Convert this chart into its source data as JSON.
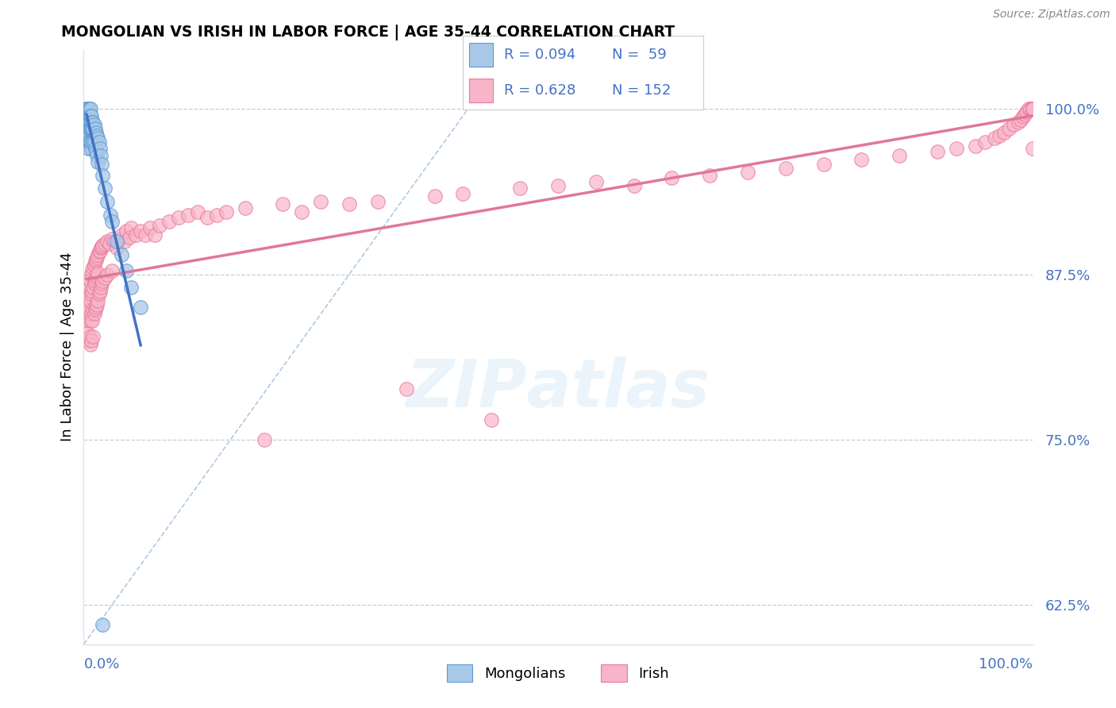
{
  "title": "MONGOLIAN VS IRISH IN LABOR FORCE | AGE 35-44 CORRELATION CHART",
  "source": "Source: ZipAtlas.com",
  "ylabel": "In Labor Force | Age 35-44",
  "ytick_labels": [
    "62.5%",
    "75.0%",
    "87.5%",
    "100.0%"
  ],
  "ytick_values": [
    0.625,
    0.75,
    0.875,
    1.0
  ],
  "xlim": [
    0.0,
    1.0
  ],
  "ylim": [
    0.595,
    1.045
  ],
  "legend_blue_r": "R = 0.094",
  "legend_blue_n": "N =  59",
  "legend_pink_r": "R = 0.628",
  "legend_pink_n": "N = 152",
  "mongolian_color": "#a8c8e8",
  "irish_color": "#f8b4c8",
  "mongolian_edge": "#5b9bd5",
  "irish_edge": "#e87898",
  "trend_blue": "#4472c4",
  "trend_pink": "#e07898",
  "diag_color": "#9bbcde",
  "label_color": "#4472c4",
  "mongolian_x": [
    0.003,
    0.003,
    0.003,
    0.004,
    0.004,
    0.004,
    0.004,
    0.005,
    0.005,
    0.005,
    0.005,
    0.005,
    0.005,
    0.005,
    0.005,
    0.006,
    0.006,
    0.006,
    0.006,
    0.006,
    0.007,
    0.007,
    0.007,
    0.007,
    0.008,
    0.008,
    0.008,
    0.008,
    0.009,
    0.009,
    0.009,
    0.01,
    0.01,
    0.01,
    0.011,
    0.011,
    0.012,
    0.012,
    0.013,
    0.013,
    0.014,
    0.014,
    0.015,
    0.015,
    0.016,
    0.017,
    0.018,
    0.019,
    0.02,
    0.022,
    0.025,
    0.028,
    0.03,
    0.035,
    0.04,
    0.045,
    0.05,
    0.06,
    0.02
  ],
  "mongolian_y": [
    1.0,
    1.0,
    0.99,
    1.0,
    1.0,
    0.99,
    0.98,
    1.0,
    1.0,
    1.0,
    1.0,
    0.99,
    0.985,
    0.975,
    0.97,
    1.0,
    0.995,
    0.99,
    0.985,
    0.975,
    1.0,
    0.995,
    0.985,
    0.975,
    0.995,
    0.99,
    0.985,
    0.97,
    0.99,
    0.985,
    0.975,
    0.99,
    0.985,
    0.975,
    0.988,
    0.975,
    0.985,
    0.97,
    0.982,
    0.968,
    0.98,
    0.965,
    0.978,
    0.96,
    0.975,
    0.97,
    0.965,
    0.958,
    0.95,
    0.94,
    0.93,
    0.92,
    0.915,
    0.9,
    0.89,
    0.878,
    0.865,
    0.85,
    0.61
  ],
  "irish_x": [
    0.003,
    0.004,
    0.004,
    0.005,
    0.005,
    0.005,
    0.006,
    0.006,
    0.006,
    0.007,
    0.007,
    0.007,
    0.007,
    0.008,
    0.008,
    0.008,
    0.008,
    0.009,
    0.009,
    0.009,
    0.01,
    0.01,
    0.01,
    0.01,
    0.011,
    0.011,
    0.011,
    0.012,
    0.012,
    0.012,
    0.013,
    0.013,
    0.013,
    0.014,
    0.014,
    0.014,
    0.015,
    0.015,
    0.015,
    0.016,
    0.016,
    0.017,
    0.017,
    0.018,
    0.018,
    0.019,
    0.019,
    0.02,
    0.02,
    0.022,
    0.022,
    0.025,
    0.025,
    0.027,
    0.03,
    0.03,
    0.032,
    0.035,
    0.038,
    0.04,
    0.043,
    0.045,
    0.048,
    0.05,
    0.055,
    0.06,
    0.065,
    0.07,
    0.075,
    0.08,
    0.09,
    0.1,
    0.11,
    0.12,
    0.13,
    0.14,
    0.15,
    0.17,
    0.19,
    0.21,
    0.23,
    0.25,
    0.28,
    0.31,
    0.34,
    0.37,
    0.4,
    0.43,
    0.46,
    0.5,
    0.54,
    0.58,
    0.62,
    0.66,
    0.7,
    0.74,
    0.78,
    0.82,
    0.86,
    0.9,
    0.92,
    0.94,
    0.95,
    0.96,
    0.965,
    0.97,
    0.975,
    0.98,
    0.985,
    0.988,
    0.99,
    0.992,
    0.994,
    0.996,
    0.998,
    1.0,
    1.0,
    1.0,
    1.0,
    1.0,
    1.0,
    1.0,
    1.0,
    1.0,
    1.0,
    1.0,
    1.0,
    1.0,
    1.0,
    1.0,
    1.0,
    1.0,
    1.0,
    1.0,
    1.0,
    1.0,
    1.0,
    1.0,
    1.0,
    1.0,
    1.0,
    1.0,
    1.0,
    1.0,
    1.0,
    1.0,
    1.0,
    1.0,
    1.0,
    1.0
  ],
  "irish_y": [
    0.84,
    0.85,
    0.83,
    0.86,
    0.845,
    0.825,
    0.865,
    0.848,
    0.828,
    0.87,
    0.855,
    0.84,
    0.822,
    0.875,
    0.86,
    0.845,
    0.825,
    0.878,
    0.862,
    0.84,
    0.88,
    0.865,
    0.848,
    0.828,
    0.882,
    0.868,
    0.845,
    0.885,
    0.87,
    0.848,
    0.886,
    0.872,
    0.85,
    0.888,
    0.874,
    0.852,
    0.89,
    0.876,
    0.855,
    0.892,
    0.86,
    0.893,
    0.862,
    0.895,
    0.865,
    0.896,
    0.868,
    0.897,
    0.87,
    0.898,
    0.872,
    0.9,
    0.875,
    0.898,
    0.902,
    0.878,
    0.9,
    0.895,
    0.902,
    0.905,
    0.9,
    0.908,
    0.903,
    0.91,
    0.905,
    0.908,
    0.905,
    0.91,
    0.905,
    0.912,
    0.915,
    0.918,
    0.92,
    0.922,
    0.918,
    0.92,
    0.922,
    0.925,
    0.75,
    0.928,
    0.922,
    0.93,
    0.928,
    0.93,
    0.788,
    0.934,
    0.936,
    0.765,
    0.94,
    0.942,
    0.945,
    0.942,
    0.948,
    0.95,
    0.952,
    0.955,
    0.958,
    0.962,
    0.965,
    0.968,
    0.97,
    0.972,
    0.975,
    0.978,
    0.98,
    0.982,
    0.985,
    0.988,
    0.99,
    0.992,
    0.994,
    0.996,
    0.998,
    1.0,
    1.0,
    1.0,
    1.0,
    1.0,
    1.0,
    1.0,
    1.0,
    1.0,
    1.0,
    1.0,
    1.0,
    1.0,
    1.0,
    1.0,
    1.0,
    1.0,
    1.0,
    1.0,
    1.0,
    1.0,
    1.0,
    1.0,
    1.0,
    1.0,
    1.0,
    1.0,
    1.0,
    1.0,
    1.0,
    1.0,
    1.0,
    1.0,
    1.0,
    1.0,
    0.97,
    1.0
  ]
}
